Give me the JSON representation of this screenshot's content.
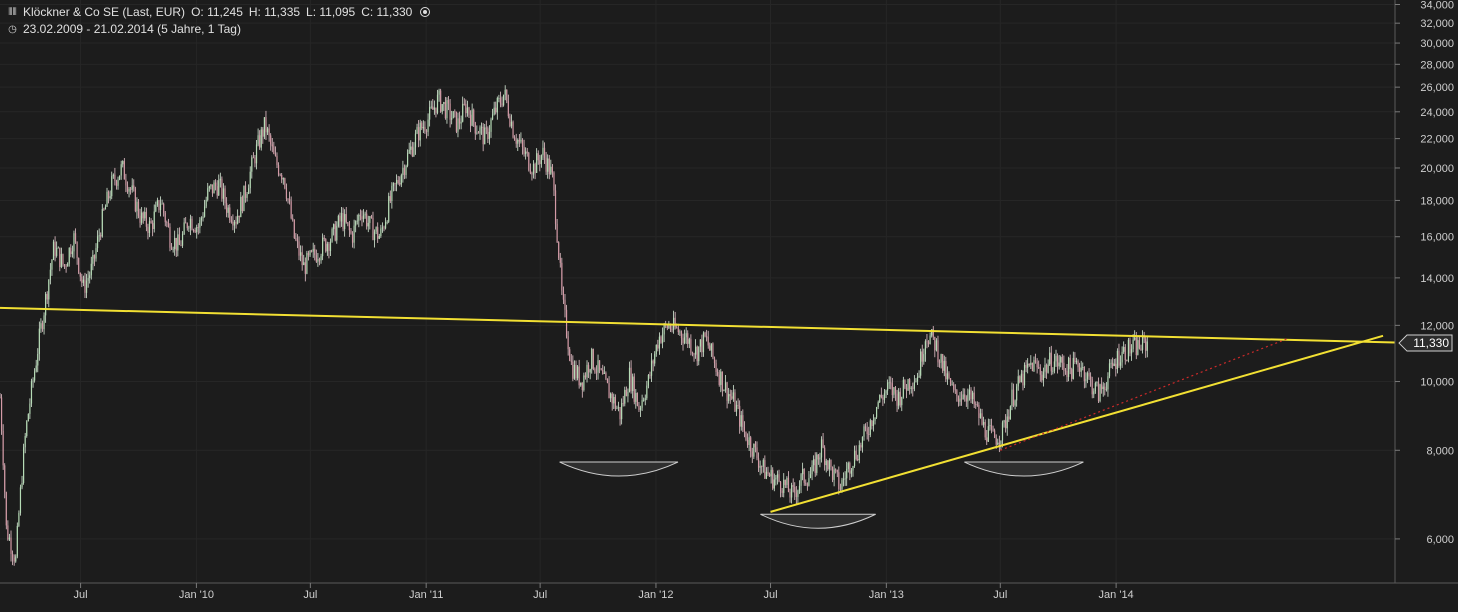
{
  "header": {
    "instrument": "Klöckner & Co SE (Last, EUR)",
    "open": "O: 11,245",
    "high": "H: 11,335",
    "low": "L: 11,095",
    "close": "C: 11,330",
    "range": "23.02.2009 - 21.02.2014 (5 Jahre, 1 Tag)",
    "icons": [
      "ohlc-bars-icon",
      "settings-circle-icon",
      "clock-icon"
    ]
  },
  "chart_data": {
    "type": "candlestick",
    "title": "Klöckner & Co SE (Last, EUR)",
    "scale": "log",
    "ylim": [
      5.2,
      34.5
    ],
    "yticks": [
      {
        "v": 6,
        "label": "6,000"
      },
      {
        "v": 8,
        "label": "8,000"
      },
      {
        "v": 10,
        "label": "10,000"
      },
      {
        "v": 12,
        "label": "12,000"
      },
      {
        "v": 14,
        "label": "14,000"
      },
      {
        "v": 16,
        "label": "16,000"
      },
      {
        "v": 18,
        "label": "18,000"
      },
      {
        "v": 20,
        "label": "20,000"
      },
      {
        "v": 22,
        "label": "22,000"
      },
      {
        "v": 24,
        "label": "24,000"
      },
      {
        "v": 26,
        "label": "26,000"
      },
      {
        "v": 28,
        "label": "28,000"
      },
      {
        "v": 30,
        "label": "30,000"
      },
      {
        "v": 32,
        "label": "32,000"
      },
      {
        "v": 34,
        "label": "34,000"
      }
    ],
    "xticks": [
      {
        "date": "2009-07-01",
        "label": "Jul"
      },
      {
        "date": "2010-01-01",
        "label": "Jan '10"
      },
      {
        "date": "2010-07-01",
        "label": "Jul"
      },
      {
        "date": "2011-01-01",
        "label": "Jan '11"
      },
      {
        "date": "2011-07-01",
        "label": "Jul"
      },
      {
        "date": "2012-01-01",
        "label": "Jan '12"
      },
      {
        "date": "2012-07-01",
        "label": "Jul"
      },
      {
        "date": "2013-01-01",
        "label": "Jan '13"
      },
      {
        "date": "2013-07-01",
        "label": "Jul"
      },
      {
        "date": "2014-01-01",
        "label": "Jan '14"
      }
    ],
    "x_range": [
      "2009-02-23",
      "2015-03-20"
    ],
    "last_price": {
      "value": 11.33,
      "label": "11,330"
    },
    "series": [
      {
        "x": [
          "2009-02-23",
          "2009-03-05",
          "2009-03-20",
          "2009-04-05",
          "2009-04-20",
          "2009-05-05",
          "2009-05-20",
          "2009-06-05",
          "2009-06-20",
          "2009-07-05",
          "2009-07-20",
          "2009-08-05",
          "2009-08-20",
          "2009-09-05",
          "2009-09-20",
          "2009-10-05",
          "2009-10-20",
          "2009-11-05",
          "2009-11-20",
          "2009-12-05",
          "2009-12-20",
          "2010-01-05",
          "2010-01-20",
          "2010-02-05",
          "2010-02-20",
          "2010-03-05",
          "2010-03-20",
          "2010-04-05",
          "2010-04-20",
          "2010-05-05",
          "2010-05-20",
          "2010-06-05",
          "2010-06-20",
          "2010-07-05",
          "2010-07-20",
          "2010-08-05",
          "2010-08-20",
          "2010-09-05",
          "2010-09-20",
          "2010-10-05",
          "2010-10-20",
          "2010-11-05",
          "2010-11-20",
          "2010-12-05",
          "2010-12-20",
          "2011-01-05",
          "2011-01-20",
          "2011-02-05",
          "2011-02-20",
          "2011-03-05",
          "2011-03-20",
          "2011-04-05",
          "2011-04-20",
          "2011-05-05",
          "2011-05-20",
          "2011-06-05",
          "2011-06-20",
          "2011-07-05",
          "2011-07-20",
          "2011-08-05",
          "2011-08-20",
          "2011-09-05",
          "2011-09-20",
          "2011-10-05",
          "2011-10-20",
          "2011-11-05",
          "2011-11-20",
          "2011-12-05",
          "2011-12-20",
          "2012-01-05",
          "2012-01-20",
          "2012-02-05",
          "2012-02-20",
          "2012-03-05",
          "2012-03-20",
          "2012-04-05",
          "2012-04-20",
          "2012-05-05",
          "2012-05-20",
          "2012-06-05",
          "2012-06-20",
          "2012-07-05",
          "2012-07-20",
          "2012-08-05",
          "2012-08-20",
          "2012-09-05",
          "2012-09-20",
          "2012-10-05",
          "2012-10-20",
          "2012-11-05",
          "2012-11-20",
          "2012-12-05",
          "2012-12-20",
          "2013-01-05",
          "2013-01-20",
          "2013-02-05",
          "2013-02-20",
          "2013-03-05",
          "2013-03-20",
          "2013-04-05",
          "2013-04-20",
          "2013-05-05",
          "2013-05-20",
          "2013-06-05",
          "2013-06-20",
          "2013-07-05",
          "2013-07-20",
          "2013-08-05",
          "2013-08-20",
          "2013-09-05",
          "2013-09-20",
          "2013-10-05",
          "2013-10-20",
          "2013-11-05",
          "2013-11-20",
          "2013-12-05",
          "2013-12-20",
          "2014-01-05",
          "2014-01-20",
          "2014-02-05",
          "2014-02-21"
        ],
        "close": [
          9.5,
          6.2,
          5.6,
          8.5,
          10.5,
          12.8,
          15.5,
          14.5,
          16.0,
          13.5,
          14.5,
          17.0,
          19.0,
          20.0,
          18.5,
          17.0,
          16.5,
          18.0,
          16.0,
          15.5,
          17.0,
          16.5,
          18.5,
          19.0,
          17.5,
          17.0,
          18.5,
          21.0,
          23.0,
          20.5,
          19.5,
          16.0,
          14.5,
          15.0,
          15.5,
          16.0,
          17.0,
          16.0,
          17.5,
          16.5,
          16.0,
          18.0,
          19.5,
          21.0,
          22.5,
          23.5,
          25.0,
          24.0,
          23.0,
          24.5,
          23.0,
          22.0,
          24.0,
          25.5,
          22.5,
          21.0,
          20.0,
          21.0,
          19.5,
          13.0,
          10.5,
          10.0,
          10.8,
          10.2,
          9.6,
          9.0,
          10.2,
          9.2,
          10.0,
          11.5,
          12.0,
          11.8,
          11.5,
          11.0,
          11.5,
          10.5,
          9.8,
          9.3,
          8.5,
          8.0,
          7.5,
          7.3,
          7.2,
          6.9,
          7.3,
          7.4,
          8.1,
          7.5,
          7.1,
          7.7,
          8.1,
          8.7,
          9.4,
          9.8,
          9.5,
          10.0,
          10.2,
          11.7,
          11.3,
          10.2,
          9.5,
          9.7,
          9.3,
          8.6,
          8.3,
          8.5,
          9.5,
          10.1,
          10.6,
          10.3,
          10.7,
          10.6,
          10.4,
          10.6,
          10.0,
          9.6,
          10.2,
          10.9,
          11.1,
          11.2,
          11.33
        ]
      }
    ],
    "annotations": {
      "resistance_line": {
        "start": {
          "date": "2009-02-23",
          "value": 12.7
        },
        "end": {
          "date": "2015-03-20",
          "value": 11.35
        },
        "color": "#f2e033"
      },
      "support_line": {
        "start": {
          "date": "2012-07-01",
          "value": 6.55
        },
        "end": {
          "date": "2015-03-01",
          "value": 11.6
        },
        "color": "#f2e033"
      },
      "projection_line": {
        "start": {
          "date": "2013-07-01",
          "value": 8.0
        },
        "end": {
          "date": "2014-10-01",
          "value": 11.5
        },
        "color": "#cc2a2a",
        "style": "dotted"
      },
      "bowls": [
        {
          "date_from": "2011-08-01",
          "date_to": "2012-02-05",
          "value": 7.7
        },
        {
          "date_from": "2012-06-15",
          "date_to": "2012-12-15",
          "value": 6.5
        },
        {
          "date_from": "2013-05-05",
          "date_to": "2013-11-10",
          "value": 7.7
        }
      ]
    }
  }
}
